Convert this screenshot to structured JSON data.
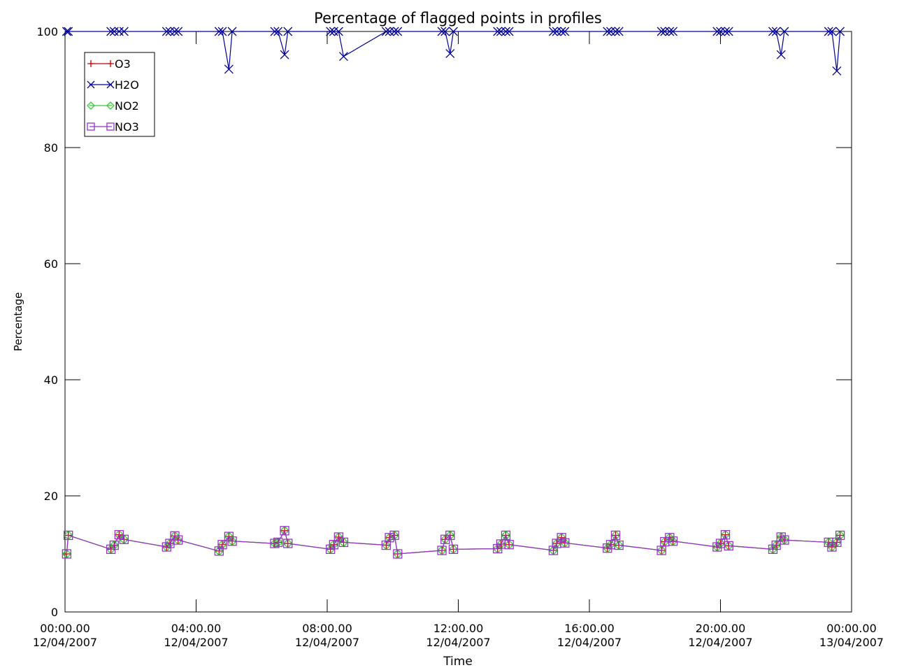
{
  "chart_data": {
    "type": "line",
    "title": "Percentage of flagged points in profiles",
    "xlabel": "Time",
    "ylabel": "Percentage",
    "xlim": [
      0,
      24
    ],
    "ylim": [
      0,
      100
    ],
    "y_ticks": [
      0,
      20,
      40,
      60,
      80,
      100
    ],
    "x_ticks": [
      {
        "value": 0,
        "time": "00:00.00",
        "date": "12/04/2007"
      },
      {
        "value": 4,
        "time": "04:00.00",
        "date": "12/04/2007"
      },
      {
        "value": 8,
        "time": "08:00.00",
        "date": "12/04/2007"
      },
      {
        "value": 12,
        "time": "12:00.00",
        "date": "12/04/2007"
      },
      {
        "value": 16,
        "time": "16:00.00",
        "date": "12/04/2007"
      },
      {
        "value": 20,
        "time": "20:00.00",
        "date": "12/04/2007"
      },
      {
        "value": 24,
        "time": "00:00.00",
        "date": "13/04/2007"
      }
    ],
    "legend_position": "top-left",
    "grid": false,
    "series": [
      {
        "name": "O3",
        "color": "#cc0000",
        "marker": "plus",
        "x": [
          0.05,
          0.1,
          1.4,
          1.5,
          1.65,
          1.8,
          3.1,
          3.2,
          3.35,
          3.45,
          4.7,
          4.8,
          5.0,
          5.1,
          6.4,
          6.5,
          6.7,
          6.8,
          8.1,
          8.2,
          8.35,
          8.5,
          9.8,
          9.9,
          10.05,
          10.15,
          11.5,
          11.6,
          11.75,
          11.85,
          13.2,
          13.3,
          13.45,
          13.55,
          14.9,
          15.0,
          15.15,
          15.25,
          16.55,
          16.65,
          16.8,
          16.9,
          18.2,
          18.3,
          18.45,
          18.55,
          19.9,
          20.0,
          20.15,
          20.25,
          21.6,
          21.7,
          21.85,
          21.95,
          23.3,
          23.4,
          23.55,
          23.65
        ],
        "y": [
          10,
          13.2,
          10.8,
          11.5,
          13.3,
          12.5,
          11.2,
          11.8,
          13.1,
          12.4,
          10.5,
          11.6,
          13.0,
          12.2,
          11.8,
          12.0,
          14.0,
          11.8,
          10.8,
          11.6,
          12.9,
          12.0,
          11.5,
          12.8,
          13.2,
          10.0,
          10.6,
          12.5,
          13.2,
          10.8,
          10.9,
          11.7,
          13.2,
          11.6,
          10.6,
          11.8,
          12.8,
          11.9,
          11.0,
          11.6,
          13.2,
          11.5,
          10.6,
          12.1,
          12.8,
          12.2,
          11.2,
          11.8,
          13.3,
          11.4,
          10.8,
          11.5,
          12.9,
          12.4,
          12.0,
          11.2,
          12.0,
          13.2
        ]
      },
      {
        "name": "H2O",
        "color": "#000099",
        "marker": "x",
        "x": [
          0.05,
          0.1,
          1.4,
          1.5,
          1.65,
          1.8,
          3.1,
          3.2,
          3.35,
          3.45,
          4.7,
          4.8,
          5.0,
          5.1,
          6.4,
          6.5,
          6.7,
          6.8,
          8.1,
          8.2,
          8.35,
          8.5,
          9.8,
          9.9,
          10.05,
          10.15,
          11.5,
          11.6,
          11.75,
          11.85,
          13.2,
          13.3,
          13.45,
          13.55,
          14.9,
          15.0,
          15.15,
          15.25,
          16.55,
          16.65,
          16.8,
          16.9,
          18.2,
          18.3,
          18.45,
          18.55,
          19.9,
          20.0,
          20.15,
          20.25,
          21.6,
          21.7,
          21.85,
          21.95,
          23.3,
          23.4,
          23.55,
          23.65
        ],
        "y": [
          100,
          100,
          100,
          100,
          100,
          100,
          100,
          100,
          100,
          100,
          100,
          100,
          93.5,
          100,
          100,
          100,
          96,
          100,
          100,
          100,
          100,
          95.7,
          100,
          100,
          100,
          100,
          100,
          100,
          96.2,
          100,
          100,
          100,
          100,
          100,
          100,
          100,
          100,
          100,
          100,
          100,
          100,
          100,
          100,
          100,
          100,
          100,
          100,
          100,
          100,
          100,
          100,
          100,
          96,
          100,
          100,
          100,
          93.2,
          100
        ]
      },
      {
        "name": "NO2",
        "color": "#33cc33",
        "marker": "diamond",
        "x": [
          0.05,
          0.1,
          1.4,
          1.5,
          1.65,
          1.8,
          3.1,
          3.2,
          3.35,
          3.45,
          4.7,
          4.8,
          5.0,
          5.1,
          6.4,
          6.5,
          6.7,
          6.8,
          8.1,
          8.2,
          8.35,
          8.5,
          9.8,
          9.9,
          10.05,
          10.15,
          11.5,
          11.6,
          11.75,
          11.85,
          13.2,
          13.3,
          13.45,
          13.55,
          14.9,
          15.0,
          15.15,
          15.25,
          16.55,
          16.65,
          16.8,
          16.9,
          18.2,
          18.3,
          18.45,
          18.55,
          19.9,
          20.0,
          20.15,
          20.25,
          21.6,
          21.7,
          21.85,
          21.95,
          23.3,
          23.4,
          23.55,
          23.65
        ],
        "y": [
          10,
          13.2,
          10.8,
          11.5,
          13.3,
          12.5,
          11.2,
          11.8,
          13.1,
          12.4,
          10.5,
          11.6,
          13.0,
          12.2,
          11.8,
          12.0,
          14.0,
          11.8,
          10.8,
          11.6,
          12.9,
          12.0,
          11.5,
          12.8,
          13.2,
          10.0,
          10.6,
          12.5,
          13.2,
          10.8,
          10.9,
          11.7,
          13.2,
          11.6,
          10.6,
          11.8,
          12.8,
          11.9,
          11.0,
          11.6,
          13.2,
          11.5,
          10.6,
          12.1,
          12.8,
          12.2,
          11.2,
          11.8,
          13.3,
          11.4,
          10.8,
          11.5,
          12.9,
          12.4,
          12.0,
          11.2,
          12.0,
          13.2
        ]
      },
      {
        "name": "NO3",
        "color": "#9933cc",
        "marker": "square",
        "x": [
          0.05,
          0.1,
          1.4,
          1.5,
          1.65,
          1.8,
          3.1,
          3.2,
          3.35,
          3.45,
          4.7,
          4.8,
          5.0,
          5.1,
          6.4,
          6.5,
          6.7,
          6.8,
          8.1,
          8.2,
          8.35,
          8.5,
          9.8,
          9.9,
          10.05,
          10.15,
          11.5,
          11.6,
          11.75,
          11.85,
          13.2,
          13.3,
          13.45,
          13.55,
          14.9,
          15.0,
          15.15,
          15.25,
          16.55,
          16.65,
          16.8,
          16.9,
          18.2,
          18.3,
          18.45,
          18.55,
          19.9,
          20.0,
          20.15,
          20.25,
          21.6,
          21.7,
          21.85,
          21.95,
          23.3,
          23.4,
          23.55,
          23.65
        ],
        "y": [
          10,
          13.2,
          10.8,
          11.5,
          13.3,
          12.5,
          11.2,
          11.8,
          13.1,
          12.4,
          10.5,
          11.6,
          13.0,
          12.2,
          11.8,
          12.0,
          14.0,
          11.8,
          10.8,
          11.6,
          12.9,
          12.0,
          11.5,
          12.8,
          13.2,
          10.0,
          10.6,
          12.5,
          13.2,
          10.8,
          10.9,
          11.7,
          13.2,
          11.6,
          10.6,
          11.8,
          12.8,
          11.9,
          11.0,
          11.6,
          13.2,
          11.5,
          10.6,
          12.1,
          12.8,
          12.2,
          11.2,
          11.8,
          13.3,
          11.4,
          10.8,
          11.5,
          12.9,
          12.4,
          12.0,
          11.2,
          12.0,
          13.2
        ]
      }
    ]
  }
}
